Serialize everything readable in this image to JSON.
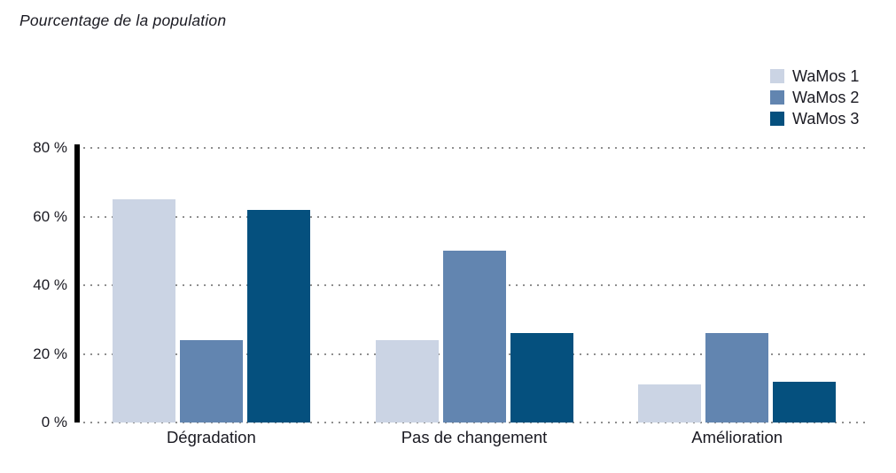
{
  "chart_title": "Pourcentage de la population",
  "colors": {
    "wamos1": "#cbd4e4",
    "wamos2": "#6285b0",
    "wamos3": "#05507e",
    "text": "#1a1a22",
    "axis": "#000000",
    "gridline": "#8f8f8f",
    "background": "#ffffff"
  },
  "chart_data": {
    "type": "bar",
    "title": "Pourcentage de la population",
    "categories": [
      "Dégradation",
      "Pas de changement",
      "Amélioration"
    ],
    "series": [
      {
        "name": "WaMos 1",
        "color": "#cbd4e4",
        "values": [
          65,
          24,
          11
        ]
      },
      {
        "name": "WaMos 2",
        "color": "#6285b0",
        "values": [
          24,
          50,
          26
        ]
      },
      {
        "name": "WaMos 3",
        "color": "#05507e",
        "values": [
          62,
          26,
          12
        ]
      }
    ],
    "xlabel": "",
    "ylabel": "Pourcentage de la population",
    "ylim": [
      0,
      80
    ],
    "yticks": [
      "80 %",
      "60 %",
      "40 %",
      "20 %",
      "0 %"
    ],
    "ytick_values": [
      80,
      60,
      40,
      20,
      0
    ],
    "grid": "horizontal-dotted",
    "legend_position": "top-right"
  }
}
